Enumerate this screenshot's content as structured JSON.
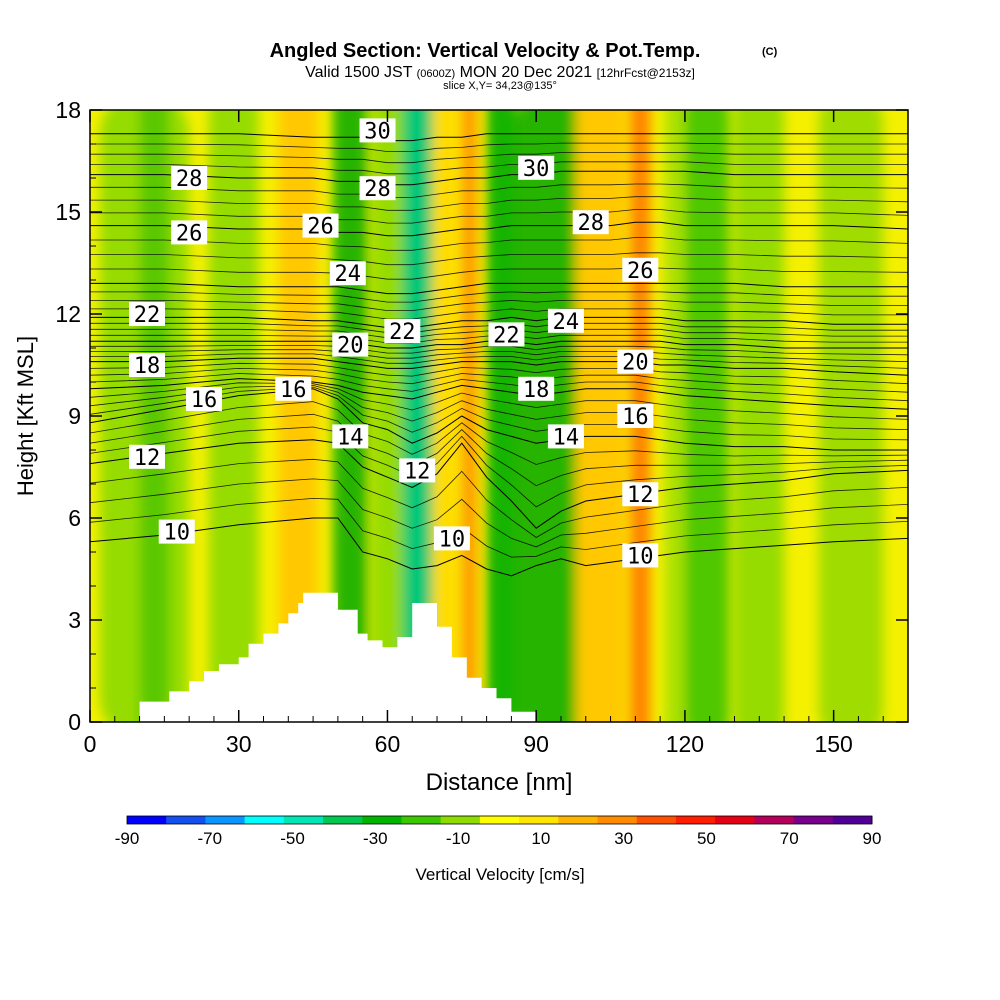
{
  "chart_data": {
    "type": "heatmap",
    "title": "Angled Section: Vertical Velocity & Pot.Temp.",
    "title_mark": "(C)",
    "subtitle_parts": [
      "Valid 1500 JST",
      "(0600Z)",
      "MON 20 Dec 2021",
      "[12hrFcst@2153z]"
    ],
    "subtitle2": "slice X,Y= 34,23@135°",
    "xlabel": "Distance [nm]",
    "ylabel": "Height [Kft MSL]",
    "xlim": [
      0,
      165
    ],
    "ylim": [
      0,
      18
    ],
    "x_ticks": [
      "0",
      "30",
      "60",
      "90",
      "120",
      "150"
    ],
    "x_tick_values": [
      0,
      30,
      60,
      90,
      120,
      150
    ],
    "y_ticks": [
      "0",
      "3",
      "6",
      "9",
      "12",
      "15",
      "18"
    ],
    "y_tick_values": [
      0,
      3,
      6,
      9,
      12,
      15,
      18
    ],
    "colorbar": {
      "label": "Vertical Velocity [cm/s]",
      "tick_labels": [
        "-90",
        "-70",
        "-50",
        "-30",
        "-10",
        "10",
        "30",
        "50",
        "70",
        "90"
      ],
      "colors": [
        "#0000ff",
        "#1450f0",
        "#0a96ff",
        "#00ffff",
        "#00e6b4",
        "#00c850",
        "#00b400",
        "#3cc800",
        "#8cdc00",
        "#ffff00",
        "#ffe600",
        "#ffb400",
        "#ff8c00",
        "#ff5000",
        "#ff1e00",
        "#e60014",
        "#b4005a",
        "#78008c",
        "#500096"
      ]
    },
    "background_color": "#f5f000",
    "velocity_bands": [
      {
        "x": [
          2,
          20
        ],
        "w": [
          -10,
          10
        ],
        "color": "#96dc00"
      },
      {
        "x": [
          10,
          16
        ],
        "w": [
          -30,
          -10
        ],
        "color": "#5ac800"
      },
      {
        "x": [
          24,
          34
        ],
        "w": [
          -10,
          10
        ],
        "color": "#96dc00"
      },
      {
        "x": [
          38,
          46
        ],
        "w": [
          10,
          30
        ],
        "color": "#ffc800"
      },
      {
        "x": [
          49,
          56
        ],
        "w": [
          -30,
          -10
        ],
        "color": "#28b400"
      },
      {
        "x": [
          57,
          63
        ],
        "w": [
          -10,
          10
        ],
        "color": "#96dc00"
      },
      {
        "x": [
          63,
          69
        ],
        "w": [
          -50,
          -30
        ],
        "color": "#00c878"
      },
      {
        "x": [
          69,
          74
        ],
        "w": [
          10,
          30
        ],
        "color": "#ffdc00"
      },
      {
        "x": [
          75,
          78
        ],
        "w": [
          30,
          50
        ],
        "color": "#ff9600"
      },
      {
        "x": [
          80,
          86
        ],
        "w": [
          -30,
          -10
        ],
        "color": "#14b400"
      },
      {
        "x": [
          86,
          99
        ],
        "w": [
          -30,
          -10
        ],
        "color": "#28b400"
      },
      {
        "x": [
          98,
          108
        ],
        "w": [
          10,
          30
        ],
        "color": "#ffc800"
      },
      {
        "x": [
          109,
          113
        ],
        "w": [
          30,
          50
        ],
        "color": "#ff8200"
      },
      {
        "x": [
          116,
          123
        ],
        "w": [
          -10,
          10
        ],
        "color": "#aae000"
      },
      {
        "x": [
          120,
          129
        ],
        "w": [
          -30,
          -10
        ],
        "color": "#50c800"
      },
      {
        "x": [
          130,
          140
        ],
        "w": [
          -10,
          10
        ],
        "color": "#96dc00"
      },
      {
        "x": [
          147,
          160
        ],
        "w": [
          -10,
          10
        ],
        "color": "#a0dc00"
      }
    ],
    "terrain": {
      "x": [
        0,
        10,
        10,
        16,
        16,
        20,
        20,
        23,
        23,
        26,
        26,
        30,
        30,
        32,
        32,
        35,
        35,
        38,
        38,
        40,
        40,
        42,
        42,
        43,
        43,
        50,
        50,
        54,
        54,
        56,
        56,
        59,
        59,
        62,
        62,
        65,
        65,
        70,
        70,
        73,
        73,
        76,
        76,
        79,
        79,
        82,
        82,
        85,
        85,
        90,
        90,
        165
      ],
      "y": [
        0,
        0,
        0.6,
        0.6,
        0.9,
        0.9,
        1.2,
        1.2,
        1.5,
        1.5,
        1.7,
        1.7,
        1.9,
        1.9,
        2.3,
        2.3,
        2.6,
        2.6,
        2.9,
        2.9,
        3.2,
        3.2,
        3.5,
        3.5,
        3.8,
        3.8,
        3.3,
        3.3,
        2.6,
        2.6,
        2.4,
        2.4,
        2.2,
        2.2,
        2.5,
        2.5,
        3.5,
        3.5,
        2.8,
        2.8,
        1.9,
        1.9,
        1.3,
        1.3,
        1.0,
        1.0,
        0.7,
        0.7,
        0.3,
        0.3,
        0,
        0
      ]
    },
    "isentropes": {
      "levels": [
        10,
        12,
        14,
        16,
        18,
        20,
        22,
        24,
        26,
        28,
        30
      ],
      "x": [
        0,
        15,
        30,
        45,
        50,
        55,
        60,
        65,
        70,
        75,
        80,
        85,
        90,
        95,
        100,
        105,
        110,
        115,
        120,
        130,
        140,
        150,
        165
      ],
      "height_kft": [
        [
          5.3,
          5.5,
          5.8,
          6.0,
          6.0,
          5.0,
          4.8,
          4.5,
          4.6,
          4.9,
          4.5,
          4.3,
          4.6,
          4.8,
          4.6,
          4.7,
          4.8,
          4.9,
          5.0,
          5.1,
          5.2,
          5.3,
          5.4
        ],
        [
          7.6,
          7.9,
          8.2,
          8.3,
          8.2,
          7.5,
          7.2,
          6.9,
          7.3,
          8.2,
          7.2,
          6.5,
          5.7,
          6.2,
          6.5,
          6.6,
          6.7,
          6.8,
          6.9,
          7.0,
          7.1,
          7.3,
          7.4
        ],
        [
          8.8,
          9.2,
          9.6,
          9.8,
          9.5,
          8.8,
          8.6,
          8.2,
          8.5,
          9.0,
          8.6,
          8.4,
          8.2,
          8.3,
          8.4,
          8.4,
          8.4,
          8.3,
          8.2,
          8.1,
          8.1,
          8.0,
          8.0
        ],
        [
          9.8,
          9.9,
          10.1,
          10.0,
          9.9,
          9.7,
          9.6,
          9.5,
          9.7,
          9.9,
          9.8,
          9.7,
          9.6,
          9.7,
          9.8,
          9.8,
          9.8,
          9.7,
          9.6,
          9.5,
          9.4,
          9.3,
          9.2
        ],
        [
          10.6,
          10.6,
          10.7,
          10.7,
          10.6,
          10.5,
          10.4,
          10.4,
          10.5,
          10.6,
          10.6,
          10.6,
          10.5,
          10.6,
          10.6,
          10.6,
          10.6,
          10.5,
          10.5,
          10.4,
          10.4,
          10.3,
          10.2
        ],
        [
          11.2,
          11.2,
          11.2,
          11.2,
          11.2,
          11.1,
          11.0,
          11.0,
          11.1,
          11.1,
          11.2,
          11.2,
          11.1,
          11.2,
          11.2,
          11.2,
          11.2,
          11.2,
          11.1,
          11.1,
          11.0,
          11.0,
          11.0
        ],
        [
          11.9,
          11.9,
          11.9,
          11.8,
          11.8,
          11.7,
          11.6,
          11.6,
          11.7,
          11.8,
          11.8,
          11.9,
          11.8,
          11.9,
          11.9,
          11.9,
          11.9,
          11.9,
          11.8,
          11.8,
          11.8,
          11.7,
          11.7
        ],
        [
          12.9,
          12.9,
          12.8,
          12.8,
          12.8,
          12.7,
          12.6,
          12.6,
          12.7,
          12.8,
          12.9,
          12.9,
          12.9,
          12.9,
          12.9,
          12.9,
          12.9,
          12.9,
          12.9,
          12.9,
          12.8,
          12.8,
          12.8
        ],
        [
          14.6,
          14.6,
          14.5,
          14.5,
          14.4,
          14.4,
          14.3,
          14.3,
          14.4,
          14.5,
          14.5,
          14.6,
          14.6,
          14.6,
          14.6,
          14.6,
          14.7,
          14.7,
          14.6,
          14.6,
          14.6,
          14.6,
          14.5
        ],
        [
          16.1,
          16.1,
          16.0,
          16.0,
          15.9,
          15.9,
          15.8,
          15.8,
          15.9,
          16.0,
          16.0,
          16.1,
          16.1,
          16.2,
          16.2,
          16.2,
          16.2,
          16.2,
          16.2,
          16.1,
          16.1,
          16.1,
          16.1
        ],
        [
          17.3,
          17.3,
          17.3,
          17.2,
          17.2,
          17.2,
          17.1,
          17.1,
          17.2,
          17.2,
          17.3,
          17.3,
          17.3,
          17.3,
          17.3,
          17.3,
          17.3,
          17.3,
          17.3,
          17.3,
          17.3,
          17.3,
          17.3
        ]
      ]
    },
    "contour_labels": [
      {
        "text": "28",
        "x": 20,
        "y": 16.0
      },
      {
        "text": "26",
        "x": 20,
        "y": 14.4
      },
      {
        "text": "22",
        "x": 11.5,
        "y": 12.0
      },
      {
        "text": "18",
        "x": 11.5,
        "y": 10.5
      },
      {
        "text": "16",
        "x": 23,
        "y": 9.5
      },
      {
        "text": "12",
        "x": 11.5,
        "y": 7.8
      },
      {
        "text": "10",
        "x": 17.5,
        "y": 5.6
      },
      {
        "text": "26",
        "x": 46.5,
        "y": 14.6
      },
      {
        "text": "24",
        "x": 52,
        "y": 13.2
      },
      {
        "text": "20",
        "x": 52.5,
        "y": 11.1
      },
      {
        "text": "16",
        "x": 41,
        "y": 9.8
      },
      {
        "text": "14",
        "x": 52.5,
        "y": 8.4
      },
      {
        "text": "30",
        "x": 58,
        "y": 17.4
      },
      {
        "text": "28",
        "x": 58,
        "y": 15.7
      },
      {
        "text": "22",
        "x": 63,
        "y": 11.5
      },
      {
        "text": "12",
        "x": 66,
        "y": 7.4
      },
      {
        "text": "10",
        "x": 73,
        "y": 5.4
      },
      {
        "text": "30",
        "x": 90,
        "y": 16.3
      },
      {
        "text": "22",
        "x": 84,
        "y": 11.4
      },
      {
        "text": "18",
        "x": 90,
        "y": 9.8
      },
      {
        "text": "28",
        "x": 101,
        "y": 14.7
      },
      {
        "text": "24",
        "x": 96,
        "y": 11.8
      },
      {
        "text": "14",
        "x": 96,
        "y": 8.4
      },
      {
        "text": "26",
        "x": 111,
        "y": 13.3
      },
      {
        "text": "20",
        "x": 110,
        "y": 10.6
      },
      {
        "text": "16",
        "x": 110,
        "y": 9.0
      },
      {
        "text": "12",
        "x": 111,
        "y": 6.7
      },
      {
        "text": "10",
        "x": 111,
        "y": 4.9
      }
    ]
  }
}
